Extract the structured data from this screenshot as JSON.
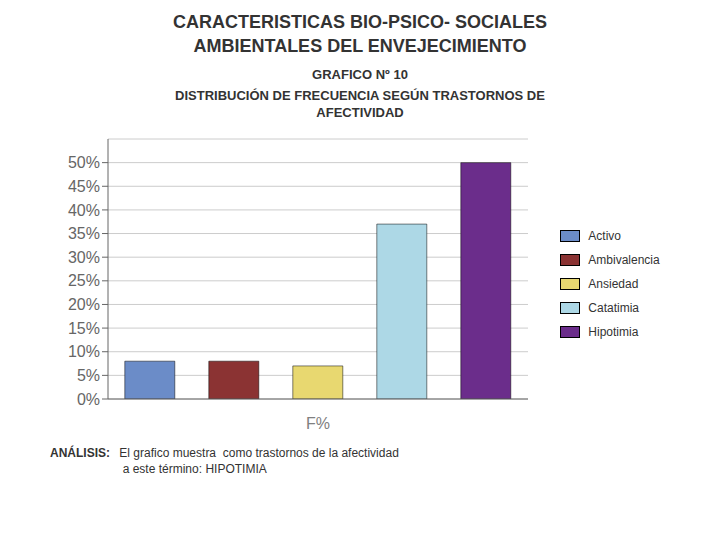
{
  "chart_data": {
    "type": "bar",
    "title": "CARACTERISTICAS BIO-PSICO- SOCIALES\nAMBIENTALES DEL ENVEJECIMIENTO",
    "subtitle": [
      "GRAFICO Nº 10",
      "DISTRIBUCIÓN DE FRECUENCIA SEGÚN TRASTORNOS DE\nAFECTIVIDAD"
    ],
    "annotations": [
      "ANÁLISIS:",
      " El grafico muestra  como trastornos de la afectividad\n  a este término: HIPOTIMIA"
    ],
    "xlabel": "F%",
    "categories": [
      "Activo",
      "Ambivalencia",
      "Ansiedad",
      "Catatimia",
      "Hipotimia"
    ],
    "values": [
      8,
      8,
      7,
      37,
      50
    ],
    "colors": [
      "#6B8CC8",
      "#8B3333",
      "#E8D870",
      "#ADD8E6",
      "#6B2D8B"
    ],
    "ylim": [
      0,
      55
    ],
    "yticks": [
      {
        "value": 0,
        "label": "0%"
      },
      {
        "value": 5,
        "label": "5%"
      },
      {
        "value": 10,
        "label": "10%"
      },
      {
        "value": 15,
        "label": "15%"
      },
      {
        "value": 20,
        "label": "20%"
      },
      {
        "value": 25,
        "label": "25%"
      },
      {
        "value": 30,
        "label": "30%"
      },
      {
        "value": 35,
        "label": "35%"
      },
      {
        "value": 40,
        "label": "40%"
      },
      {
        "value": 45,
        "label": "45%"
      },
      {
        "value": 50,
        "label": "50%"
      }
    ],
    "grid": true,
    "legend": "right",
    "tick_labels": "y"
  }
}
